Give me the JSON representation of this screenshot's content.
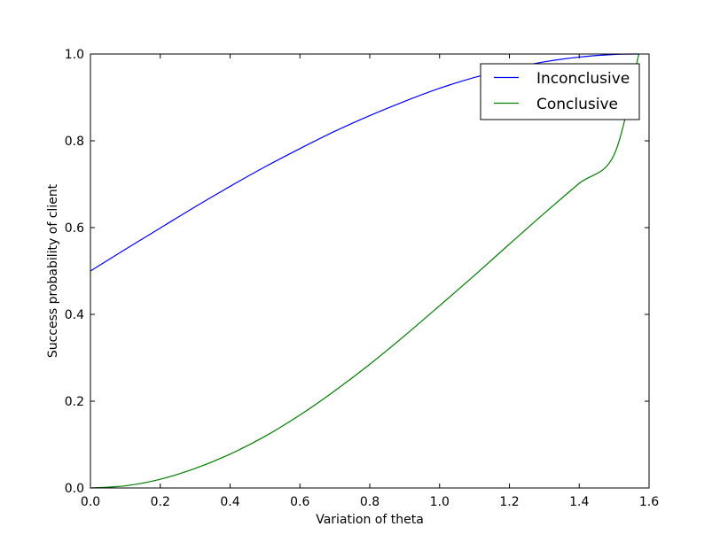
{
  "chart_data": {
    "type": "line",
    "title": "",
    "xlabel": "Variation of theta",
    "ylabel": "Success probability of client",
    "xlim": [
      0.0,
      1.6
    ],
    "ylim": [
      0.0,
      1.0
    ],
    "xticks": [
      "0.0",
      "0.2",
      "0.4",
      "0.6",
      "0.8",
      "1.0",
      "1.2",
      "1.4",
      "1.6"
    ],
    "yticks": [
      "0.0",
      "0.2",
      "0.4",
      "0.6",
      "0.8",
      "1.0"
    ],
    "grid": false,
    "legend_position": "top-right",
    "series": [
      {
        "name": "Inconclusive",
        "color": "#0000ff",
        "x": [
          0.0,
          0.1,
          0.2,
          0.3,
          0.4,
          0.5,
          0.6,
          0.7,
          0.8,
          0.9,
          1.0,
          1.1,
          1.2,
          1.3,
          1.4,
          1.5,
          1.5708
        ],
        "y": [
          0.5,
          0.55,
          0.599,
          0.648,
          0.695,
          0.74,
          0.782,
          0.822,
          0.858,
          0.891,
          0.921,
          0.946,
          0.966,
          0.982,
          0.993,
          0.999,
          1.0
        ]
      },
      {
        "name": "Conclusive",
        "color": "#008000",
        "x": [
          0.0,
          0.1,
          0.2,
          0.3,
          0.4,
          0.5,
          0.6,
          0.7,
          0.8,
          0.9,
          1.0,
          1.1,
          1.2,
          1.3,
          1.4,
          1.5,
          1.5708
        ],
        "y": [
          0.0,
          0.005,
          0.02,
          0.045,
          0.078,
          0.119,
          0.168,
          0.224,
          0.285,
          0.351,
          0.42,
          0.49,
          0.562,
          0.633,
          0.702,
          0.768,
          1.0
        ]
      }
    ]
  }
}
